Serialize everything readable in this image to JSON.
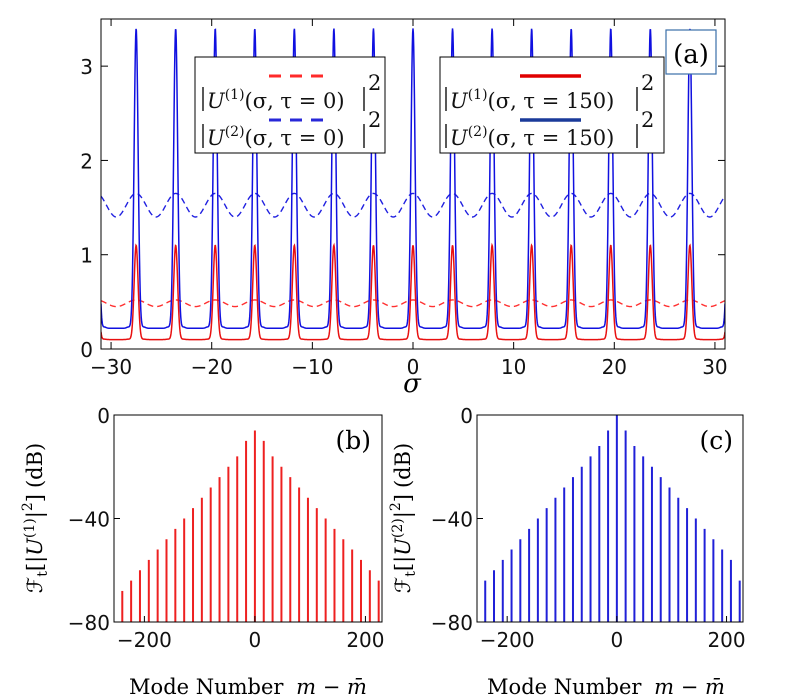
{
  "chart_data": [
    {
      "panel": "a",
      "type": "line",
      "panel_label": "(a)",
      "xlabel": "σ",
      "ylabel": "",
      "xlim": [
        -31,
        31
      ],
      "ylim": [
        0,
        3.5
      ],
      "xticks": [
        -30,
        -20,
        -10,
        0,
        10,
        20,
        30
      ],
      "yticks": [
        0,
        1,
        2,
        3
      ],
      "xtick_labels": [
        "−30",
        "−20",
        "−10",
        "0",
        "10",
        "20",
        "30"
      ],
      "ytick_labels": [
        "0",
        "1",
        "2",
        "3"
      ],
      "period": 3.93,
      "series": [
        {
          "name": "|U(1)(σ,τ = 0)|2",
          "color": "#ff3030",
          "style": "dashed",
          "kind": "smooth",
          "min": 0.45,
          "max": 0.52
        },
        {
          "name": "|U(2)(σ,τ = 0)|2",
          "color": "#2020e0",
          "style": "dashed",
          "kind": "smooth",
          "min": 1.4,
          "max": 1.65
        },
        {
          "name": "|U(1)(σ,τ = 150)|2",
          "color": "#e81010",
          "style": "solid",
          "kind": "peaks",
          "base": 0.1,
          "peak": 1.1
        },
        {
          "name": "|U(2)(σ,τ = 150)|2",
          "color": "#1010e0",
          "style": "solid",
          "kind": "peaks",
          "base": 0.22,
          "peak": 3.4
        }
      ],
      "legend": {
        "left": [
          {
            "lhs": "U",
            "sup": "(1)",
            "args": "(σ, τ = 0)",
            "exp": "2"
          },
          {
            "lhs": "U",
            "sup": "(2)",
            "args": "(σ, τ = 0)",
            "exp": "2"
          }
        ],
        "right": [
          {
            "lhs": "U",
            "sup": "(1)",
            "args": "(σ, τ = 150)",
            "exp": "2"
          },
          {
            "lhs": "U",
            "sup": "(2)",
            "args": "(σ, τ = 150)",
            "exp": "2"
          }
        ]
      }
    },
    {
      "panel": "b",
      "type": "bar",
      "panel_label": "(b)",
      "color": "#ee2020",
      "xlim": [
        -255,
        230
      ],
      "ylim": [
        -80,
        0
      ],
      "xticks": [
        -200,
        0,
        200
      ],
      "yticks": [
        -80,
        -40,
        0
      ],
      "xtick_labels": [
        "−200",
        "0",
        "200"
      ],
      "ytick_labels": [
        "−80",
        "−40",
        "0"
      ],
      "xlabel_text": "Mode Number",
      "xlabel_math": "m − m̄",
      "ylabel": {
        "prefix": "ℱ",
        "sub": "t",
        "inner": "U",
        "sup": "(1)",
        "exp": "2",
        "unit": "(dB)"
      },
      "mode_spacing": 16,
      "modes": [
        -240,
        -224,
        -208,
        -192,
        -176,
        -160,
        -144,
        -128,
        -112,
        -96,
        -80,
        -64,
        -48,
        -32,
        -16,
        0,
        16,
        32,
        48,
        64,
        80,
        96,
        112,
        128,
        144,
        160,
        176,
        192,
        208,
        224
      ],
      "values": [
        -68,
        -64,
        -60,
        -56,
        -52,
        -48,
        -44,
        -40,
        -36,
        -32,
        -28,
        -24,
        -20,
        -16,
        -10,
        -6,
        -10,
        -16,
        -20,
        -24,
        -28,
        -32,
        -36,
        -40,
        -44,
        -48,
        -52,
        -56,
        -60,
        -64
      ]
    },
    {
      "panel": "c",
      "type": "bar",
      "panel_label": "(c)",
      "color": "#2020d8",
      "xlim": [
        -255,
        230
      ],
      "ylim": [
        -80,
        0
      ],
      "xticks": [
        -200,
        0,
        200
      ],
      "yticks": [
        -80,
        -40,
        0
      ],
      "xtick_labels": [
        "−200",
        "0",
        "200"
      ],
      "ytick_labels": [
        "−80",
        "−40",
        "0"
      ],
      "xlabel_text": "Mode Number",
      "xlabel_math": "m − m̄",
      "ylabel": {
        "prefix": "ℱ",
        "sub": "t",
        "inner": "U",
        "sup": "(2)",
        "exp": "2",
        "unit": "(dB)"
      },
      "mode_spacing": 16,
      "modes": [
        -240,
        -224,
        -208,
        -192,
        -176,
        -160,
        -144,
        -128,
        -112,
        -96,
        -80,
        -64,
        -48,
        -32,
        -16,
        0,
        16,
        32,
        48,
        64,
        80,
        96,
        112,
        128,
        144,
        160,
        176,
        192,
        208,
        224
      ],
      "values": [
        -64,
        -60,
        -56,
        -52,
        -48,
        -44,
        -40,
        -36,
        -32,
        -28,
        -24,
        -20,
        -16,
        -12,
        -6,
        0,
        -6,
        -12,
        -16,
        -20,
        -24,
        -28,
        -32,
        -36,
        -40,
        -44,
        -48,
        -52,
        -56,
        -64
      ]
    }
  ]
}
